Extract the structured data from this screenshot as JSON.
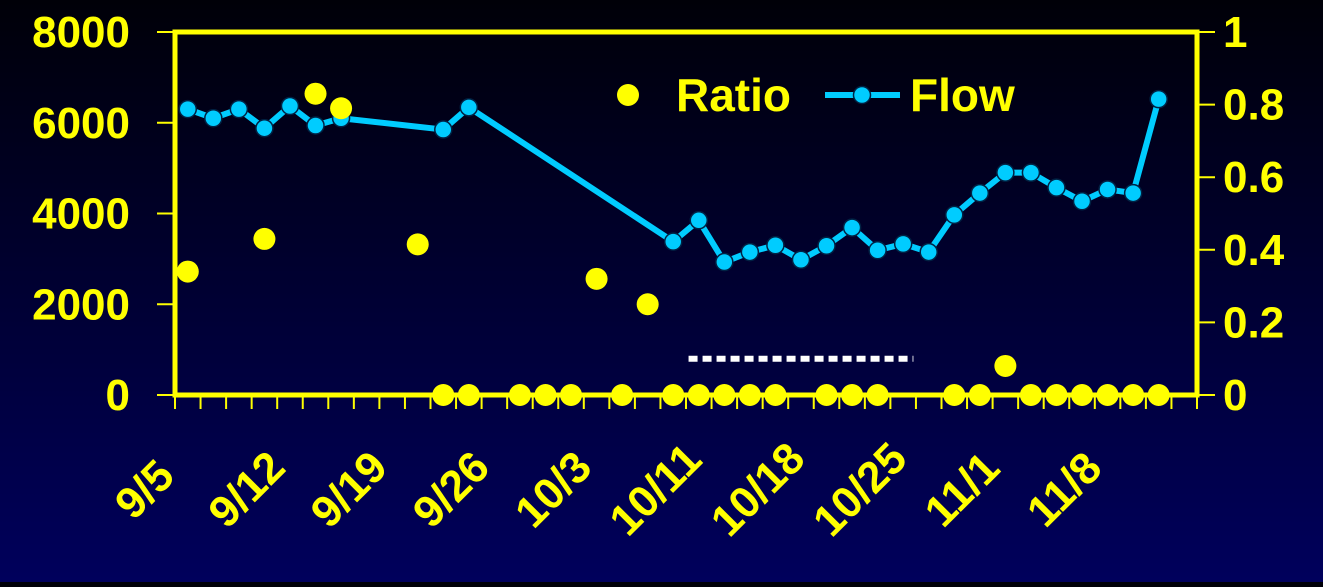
{
  "chart_data": {
    "type": "line",
    "title": "",
    "xlabel": "",
    "colors": {
      "axis": "#FFFF00",
      "ratio": "#FFFF00",
      "flow": "#00CCFF",
      "flow_marker_fill": "#00CCFF",
      "dotted_line": "#FFFFFF",
      "background_top": "#000008",
      "background_bottom": "#00005C"
    },
    "x_ticks": [
      "9/5",
      "9/12",
      "9/19",
      "9/26",
      "10/3",
      "10/11",
      "10/18",
      "10/25",
      "11/1",
      "11/8"
    ],
    "x_slots": 40,
    "y_left": {
      "label": "",
      "ylim": [
        0,
        8000
      ],
      "ticks": [
        "0",
        "2000",
        "4000",
        "6000",
        "8000"
      ]
    },
    "y_right": {
      "label": "",
      "ylim": [
        0,
        1
      ],
      "ticks": [
        "0",
        "0.2",
        "0.4",
        "0.6",
        "0.8",
        "1"
      ]
    },
    "legend": {
      "position": "top-right",
      "entries": [
        "Ratio",
        "Flow"
      ]
    },
    "series": [
      {
        "name": "Ratio",
        "axis": "right",
        "style": "markers",
        "points": [
          {
            "x": 0.5,
            "y": 0.34
          },
          {
            "x": 3.5,
            "y": 0.43
          },
          {
            "x": 5.5,
            "y": 0.83
          },
          {
            "x": 6.5,
            "y": 0.79
          },
          {
            "x": 9.5,
            "y": 0.415
          },
          {
            "x": 10.5,
            "y": 0
          },
          {
            "x": 11.5,
            "y": 0
          },
          {
            "x": 13.5,
            "y": 0
          },
          {
            "x": 14.5,
            "y": 0
          },
          {
            "x": 15.5,
            "y": 0
          },
          {
            "x": 16.5,
            "y": 0.32
          },
          {
            "x": 17.5,
            "y": 0
          },
          {
            "x": 18.5,
            "y": 0.25
          },
          {
            "x": 19.5,
            "y": 0
          },
          {
            "x": 20.5,
            "y": 0
          },
          {
            "x": 21.5,
            "y": 0
          },
          {
            "x": 22.5,
            "y": 0
          },
          {
            "x": 23.5,
            "y": 0
          },
          {
            "x": 25.5,
            "y": 0
          },
          {
            "x": 26.5,
            "y": 0
          },
          {
            "x": 27.5,
            "y": 0
          },
          {
            "x": 30.5,
            "y": 0
          },
          {
            "x": 31.5,
            "y": 0
          },
          {
            "x": 32.5,
            "y": 0.08
          },
          {
            "x": 33.5,
            "y": 0
          },
          {
            "x": 34.5,
            "y": 0
          },
          {
            "x": 35.5,
            "y": 0
          },
          {
            "x": 36.5,
            "y": 0
          },
          {
            "x": 37.5,
            "y": 0
          },
          {
            "x": 38.5,
            "y": 0
          }
        ]
      },
      {
        "name": "Flow",
        "axis": "left",
        "style": "line-markers",
        "points": [
          {
            "x": 0.5,
            "y": 6300
          },
          {
            "x": 1.5,
            "y": 6100
          },
          {
            "x": 2.5,
            "y": 6300
          },
          {
            "x": 3.5,
            "y": 5880
          },
          {
            "x": 4.5,
            "y": 6370
          },
          {
            "x": 5.5,
            "y": 5940
          },
          {
            "x": 6.5,
            "y": 6100
          },
          {
            "x": 10.5,
            "y": 5850
          },
          {
            "x": 11.5,
            "y": 6340
          },
          {
            "x": 19.5,
            "y": 3380
          },
          {
            "x": 20.5,
            "y": 3850
          },
          {
            "x": 21.5,
            "y": 2930
          },
          {
            "x": 22.5,
            "y": 3150
          },
          {
            "x": 23.5,
            "y": 3300
          },
          {
            "x": 24.5,
            "y": 2980
          },
          {
            "x": 25.5,
            "y": 3290
          },
          {
            "x": 26.5,
            "y": 3690
          },
          {
            "x": 27.5,
            "y": 3190
          },
          {
            "x": 28.5,
            "y": 3330
          },
          {
            "x": 29.5,
            "y": 3150
          },
          {
            "x": 30.5,
            "y": 3970
          },
          {
            "x": 31.5,
            "y": 4450
          },
          {
            "x": 32.5,
            "y": 4900
          },
          {
            "x": 33.5,
            "y": 4900
          },
          {
            "x": 34.5,
            "y": 4570
          },
          {
            "x": 35.5,
            "y": 4270
          },
          {
            "x": 36.5,
            "y": 4530
          },
          {
            "x": 37.5,
            "y": 4450
          },
          {
            "x": 38.5,
            "y": 6520
          }
        ]
      }
    ],
    "annotations": [
      {
        "type": "dotted-line",
        "axis": "right",
        "x_start": 20.1,
        "x_end": 28.9,
        "y": 0.1
      }
    ]
  }
}
